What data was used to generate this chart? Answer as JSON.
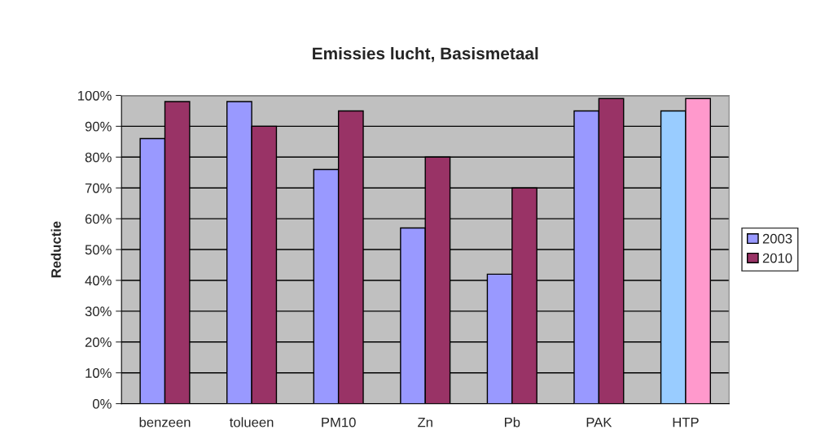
{
  "chart_data": {
    "type": "bar",
    "title": "Emissies lucht, Basismetaal",
    "ylabel": "Reductie",
    "categories": [
      "benzeen",
      "tolueen",
      "PM10",
      "Zn",
      "Pb",
      "PAK",
      "HTP"
    ],
    "series": [
      {
        "name": "2003",
        "color": "#9999ff",
        "colors": [
          "#9999ff",
          "#9999ff",
          "#9999ff",
          "#9999ff",
          "#9999ff",
          "#9999ff",
          "#99ccff"
        ],
        "values": [
          86,
          98,
          76,
          57,
          42,
          95,
          95
        ]
      },
      {
        "name": "2010",
        "color": "#993366",
        "colors": [
          "#993366",
          "#993366",
          "#993366",
          "#993366",
          "#993366",
          "#993366",
          "#ff99cc"
        ],
        "values": [
          98,
          90,
          95,
          80,
          70,
          99,
          99
        ]
      }
    ],
    "ylim": [
      0,
      100
    ],
    "yticks": [
      {
        "value": 0,
        "label": "0%"
      },
      {
        "value": 10,
        "label": "10%"
      },
      {
        "value": 20,
        "label": "20%"
      },
      {
        "value": 30,
        "label": "30%"
      },
      {
        "value": 40,
        "label": "40%"
      },
      {
        "value": 50,
        "label": "50%"
      },
      {
        "value": 60,
        "label": "60%"
      },
      {
        "value": 70,
        "label": "70%"
      },
      {
        "value": 80,
        "label": "80%"
      },
      {
        "value": 90,
        "label": "90%"
      },
      {
        "value": 100,
        "label": "100%"
      }
    ],
    "grid": "y",
    "legend": "right"
  }
}
